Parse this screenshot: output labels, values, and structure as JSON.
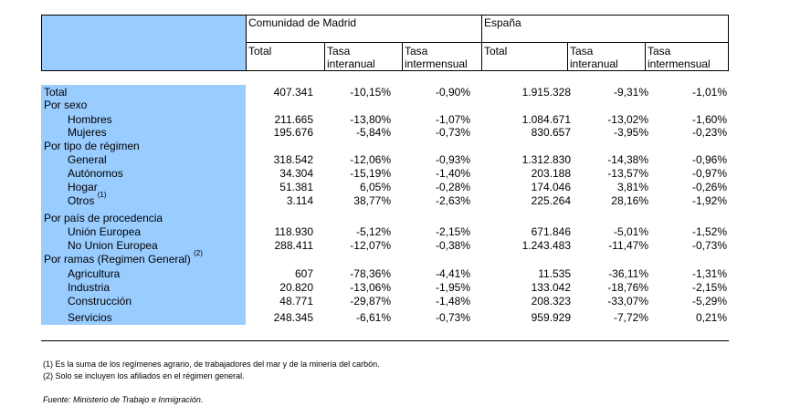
{
  "header": {
    "region_madrid": "Comunidad de Madrid",
    "region_spain": "España",
    "col_total": "Total",
    "col_tasa": "Tasa",
    "col_interanual": "interanual",
    "col_intermensual": "intermensual"
  },
  "rows": [
    {
      "label": "Total",
      "indent": false,
      "v": [
        "407.341",
        "-10,15%",
        "-0,90%",
        "1.915.328",
        "-9,31%",
        "-1,01%"
      ]
    },
    {
      "label": "Por sexo",
      "indent": false,
      "v": [
        "",
        "",
        "",
        "",
        "",
        ""
      ]
    },
    {
      "label": "Hombres",
      "indent": true,
      "v": [
        "211.665",
        "-13,80%",
        "-1,07%",
        "1.084.671",
        "-13,02%",
        "-1,60%"
      ]
    },
    {
      "label": "Mujeres",
      "indent": true,
      "v": [
        "195.676",
        "-5,84%",
        "-0,73%",
        "830.657",
        "-3,95%",
        "-0,23%"
      ]
    },
    {
      "label": "Por tipo de régimen",
      "indent": false,
      "v": [
        "",
        "",
        "",
        "",
        "",
        ""
      ]
    },
    {
      "label": "General",
      "indent": true,
      "v": [
        "318.542",
        "-12,06%",
        "-0,93%",
        "1.312.830",
        "-14,38%",
        "-0,96%"
      ]
    },
    {
      "label": "Autónomos",
      "indent": true,
      "v": [
        "34.304",
        "-15,19%",
        "-1,40%",
        "203.188",
        "-13,57%",
        "-0,97%"
      ]
    },
    {
      "label": "Hogar",
      "indent": true,
      "v": [
        "51.381",
        "6,05%",
        "-0,28%",
        "174.046",
        "3,81%",
        "-0,26%"
      ]
    },
    {
      "label": "Otros",
      "sup": "(1)",
      "indent": true,
      "v": [
        "3.114",
        "38,77%",
        "-2,63%",
        "225.264",
        "28,16%",
        "-1,92%"
      ]
    },
    {
      "label": "Por país de procedencia",
      "indent": false,
      "v": [
        "",
        "",
        "",
        "",
        "",
        ""
      ]
    },
    {
      "label": "Unión Europea",
      "indent": true,
      "v": [
        "118.930",
        "-5,12%",
        "-2,15%",
        "671.846",
        "-5,01%",
        "-1,52%"
      ]
    },
    {
      "label": "No Union Europea",
      "indent": true,
      "v": [
        "288.411",
        "-12,07%",
        "-0,38%",
        "1.243.483",
        "-11,47%",
        "-0,73%"
      ]
    },
    {
      "label": "Por ramas (Regimen General)",
      "sup": "(2)",
      "indent": false,
      "v": [
        "",
        "",
        "",
        "",
        "",
        ""
      ]
    },
    {
      "label": "Agricultura",
      "indent": true,
      "v": [
        "607",
        "-78,36%",
        "-4,41%",
        "11.535",
        "-36,11%",
        "-1,31%"
      ]
    },
    {
      "label": "Industria",
      "indent": true,
      "v": [
        "20.820",
        "-13,06%",
        "-1,95%",
        "133.042",
        "-18,76%",
        "-2,15%"
      ]
    },
    {
      "label": "Construcción",
      "indent": true,
      "v": [
        "48.771",
        "-29,87%",
        "-1,48%",
        "208.323",
        "-33,07%",
        "-5,29%"
      ]
    },
    {
      "label": "Servicios",
      "indent": true,
      "v": [
        "248.345",
        "-6,61%",
        "-0,73%",
        "959.929",
        "-7,72%",
        "0,21%"
      ]
    }
  ],
  "notes": {
    "note1": "(1) Es la suma de los regímenes  agrario, de trabajadores del mar y de la minería del carbón.",
    "note2": "(2) Solo se incluyen los afiliados en el régimen general.",
    "source": "Fuente: Ministerio de Trabajo e Inmigración."
  }
}
